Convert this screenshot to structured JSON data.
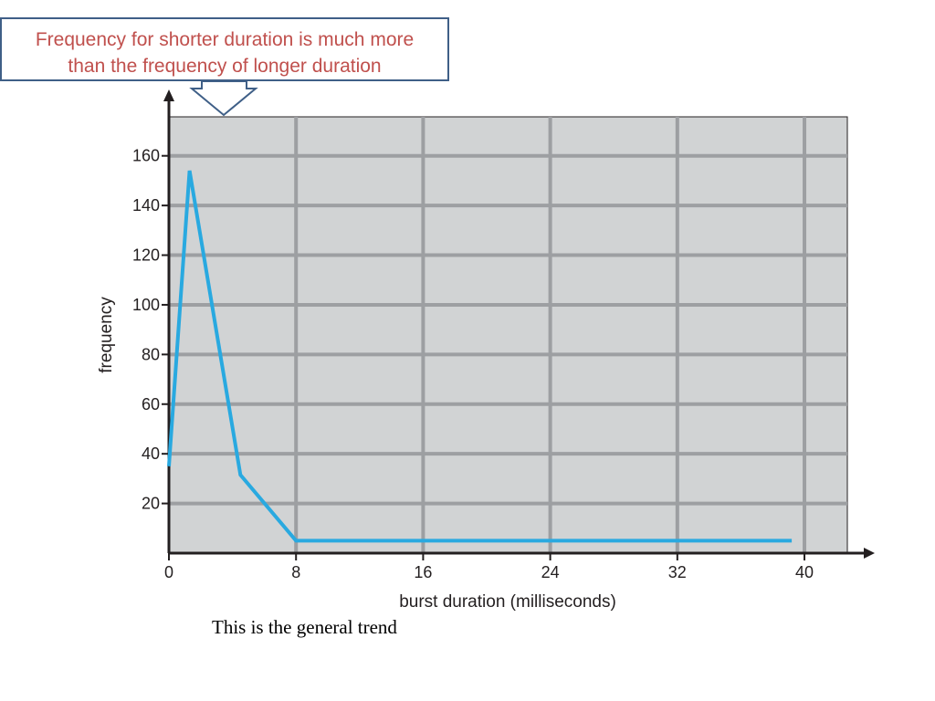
{
  "callout": {
    "line1": "Frequency for shorter duration is much more",
    "line2": "than the frequency of longer duration",
    "text_color": "#c0504d",
    "border_color": "#3f5f87"
  },
  "caption": "This is the general trend",
  "chart_data": {
    "type": "line",
    "title": "",
    "xlabel": "burst duration (milliseconds)",
    "ylabel": "frequency",
    "xlim": [
      0,
      42.7
    ],
    "ylim": [
      0,
      175.7
    ],
    "xticks": [
      0,
      8,
      16,
      24,
      32,
      40
    ],
    "yticks": [
      20,
      40,
      60,
      80,
      100,
      120,
      140,
      160
    ],
    "grid": true,
    "plot_background": "#d1d3d4",
    "grid_color": "#9d9fa2",
    "line_color": "#29a9e0",
    "series": [
      {
        "x": [
          0,
          1.3,
          4.5,
          8,
          39.2
        ],
        "y": [
          35,
          154,
          31.5,
          5,
          5
        ]
      }
    ]
  }
}
